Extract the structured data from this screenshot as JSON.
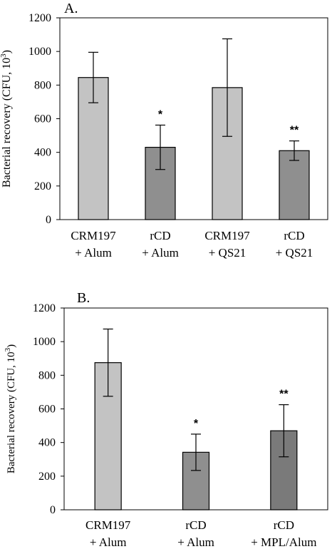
{
  "chart_data": [
    {
      "type": "bar",
      "panel_label": "A.",
      "ylabel": "Bacterial recovery (CFU, 10",
      "ylabel_sup": "3",
      "ylabel_close": ")",
      "ylim": [
        0,
        1200
      ],
      "yticks": [
        0,
        200,
        400,
        600,
        800,
        1000,
        1200
      ],
      "categories": [
        [
          "CRM197",
          "+ Alum"
        ],
        [
          "rCD",
          "+ Alum"
        ],
        [
          "CRM197",
          "+ QS21"
        ],
        [
          "rCD",
          "+ QS21"
        ]
      ],
      "values": [
        845,
        430,
        785,
        410
      ],
      "errors": [
        150,
        132,
        290,
        58
      ],
      "significance": [
        "",
        "*",
        "",
        "**"
      ],
      "colors": [
        "#c3c3c3",
        "#8f8f8f",
        "#c3c3c3",
        "#8f8f8f"
      ]
    },
    {
      "type": "bar",
      "panel_label": "B.",
      "ylabel": "Bacterial recovery (CFU, 10",
      "ylabel_sup": "3",
      "ylabel_close": ")",
      "ylim": [
        0,
        1200
      ],
      "yticks": [
        0,
        200,
        400,
        600,
        800,
        1000,
        1200
      ],
      "categories": [
        [
          "CRM197",
          "+ Alum"
        ],
        [
          "rCD",
          "+ Alum"
        ],
        [
          "rCD",
          "+ MPL/Alum"
        ]
      ],
      "values": [
        875,
        342,
        470
      ],
      "errors": [
        200,
        108,
        155
      ],
      "significance": [
        "",
        "*",
        "**"
      ],
      "colors": [
        "#c3c3c3",
        "#8f8f8f",
        "#7a7a7a"
      ]
    }
  ]
}
